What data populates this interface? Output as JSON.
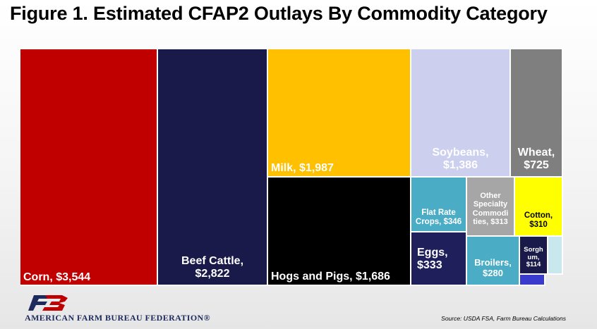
{
  "header": {
    "title": "Figure 1. Estimated CFAP2 Outlays By Commodity Category"
  },
  "footer": {
    "organization": "AMERICAN FARM BUREAU FEDERATION®",
    "source": "Source: USDA FSA, Farm Bureau Calculations",
    "logo_icon": "afbf-logo-icon"
  },
  "chart_data": {
    "type": "treemap",
    "title": "Figure 1. Estimated CFAP2 Outlays By Commodity Category",
    "items": [
      {
        "label": "Corn, $3,544",
        "lines": [
          "Corn, $3,544"
        ],
        "value": 3544,
        "color": "#c00000"
      },
      {
        "label": "Beef Cattle, $2,822",
        "lines": [
          "Beef Cattle,",
          "$2,822"
        ],
        "value": 2822,
        "color": "#1a1a4a"
      },
      {
        "label": "Milk, $1,987",
        "lines": [
          "Milk, $1,987"
        ],
        "value": 1987,
        "color": "#ffc000"
      },
      {
        "label": "Hogs and Pigs, $1,686",
        "lines": [
          "Hogs and Pigs, $1,686"
        ],
        "value": 1686,
        "color": "#000000"
      },
      {
        "label": "Soybeans, $1,386",
        "lines": [
          "Soybeans,",
          "$1,386"
        ],
        "value": 1386,
        "color": "#cccfee"
      },
      {
        "label": "Wheat, $725",
        "lines": [
          "Wheat,",
          "$725"
        ],
        "value": 725,
        "color": "#7f7f7f"
      },
      {
        "label": "Flat Rate Crops, $346",
        "lines": [
          "Flat Rate",
          "Crops, $346"
        ],
        "value": 346,
        "color": "#4bacc6"
      },
      {
        "label": "Eggs, $333",
        "lines": [
          "Eggs,",
          "$333"
        ],
        "value": 333,
        "color": "#1f1f5c"
      },
      {
        "label": "Other Specialty Commodities, $313",
        "lines": [
          "Other",
          "Specialty",
          "Commodi",
          "ties, $313"
        ],
        "value": 313,
        "color": "#a6a6a6"
      },
      {
        "label": "Cotton, $310",
        "lines": [
          "Cotton,",
          "$310"
        ],
        "value": 310,
        "color": "#ffff00"
      },
      {
        "label": "Broilers, $280",
        "lines": [
          "Broilers,",
          "$280"
        ],
        "value": 280,
        "color": "#4bacc6"
      },
      {
        "label": "Sorghum, $114",
        "lines": [
          "Sorgh",
          "um,",
          "$114"
        ],
        "value": 114,
        "color": "#1a1a4a"
      },
      {
        "label": "",
        "lines": [],
        "value": 80,
        "color": "#c9e8ee"
      },
      {
        "label": "",
        "lines": [],
        "value": 60,
        "color": "#3a3acc"
      }
    ]
  }
}
